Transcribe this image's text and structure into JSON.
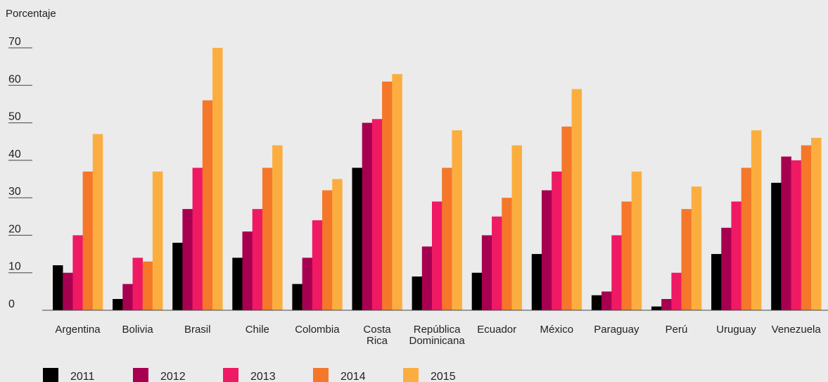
{
  "chart_data": {
    "type": "bar",
    "title": "",
    "ylabel": "Porcentaje",
    "xlabel": "",
    "ylim": [
      0,
      70
    ],
    "yticks": [
      "0",
      "10",
      "20",
      "30",
      "40",
      "50",
      "60",
      "70"
    ],
    "grid": false,
    "legend_position": "bottom-left",
    "categories": [
      [
        "Argentina"
      ],
      [
        "Bolivia"
      ],
      [
        "Brasil"
      ],
      [
        "Chile"
      ],
      [
        "Colombia"
      ],
      [
        "Costa",
        "Rica"
      ],
      [
        "República",
        "Dominicana"
      ],
      [
        "Ecuador"
      ],
      [
        "México"
      ],
      [
        "Paraguay"
      ],
      [
        "Perú"
      ],
      [
        "Uruguay"
      ],
      [
        "Venezuela"
      ]
    ],
    "series": [
      {
        "name": "2011",
        "color": "#000000",
        "values": [
          12,
          3,
          18,
          14,
          7,
          38,
          9,
          10,
          15,
          4,
          1,
          15,
          34
        ]
      },
      {
        "name": "2012",
        "color": "#a80050",
        "values": [
          10,
          7,
          27,
          21,
          14,
          50,
          17,
          20,
          32,
          5,
          3,
          22,
          41
        ]
      },
      {
        "name": "2013",
        "color": "#ef1964",
        "values": [
          20,
          14,
          38,
          27,
          24,
          51,
          29,
          25,
          37,
          20,
          10,
          29,
          40
        ]
      },
      {
        "name": "2014",
        "color": "#f5772a",
        "values": [
          37,
          13,
          56,
          38,
          32,
          61,
          38,
          30,
          49,
          29,
          27,
          38,
          44
        ]
      },
      {
        "name": "2015",
        "color": "#fbae3f",
        "values": [
          47,
          37,
          70,
          44,
          35,
          63,
          48,
          44,
          59,
          37,
          33,
          48,
          46
        ]
      }
    ]
  }
}
